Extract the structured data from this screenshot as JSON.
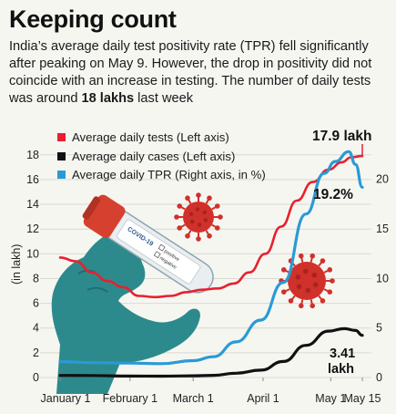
{
  "header": {
    "title": "Keeping count",
    "subtitle_text": "India’s average daily test positivity rate (TPR) fell significantly after peaking on May 9. However, the drop in positivity did not coincide with an increase in testing. The number of daily tests was around ",
    "subtitle_bold": "18 lakhs",
    "subtitle_end": " last week"
  },
  "colors": {
    "tests": "#e8202e",
    "cases": "#111111",
    "tpr": "#2a9ad6",
    "virus": "#d0312a",
    "glove": "#2d8a8c"
  },
  "illustration": {
    "tube_label": "COVID-19",
    "tube_check_1": "positive",
    "tube_check_2": "negative"
  },
  "chart_data": {
    "type": "line",
    "x_ticks": [
      "January 1",
      "February 1",
      "March 1",
      "April 1",
      "May 1",
      "May 15"
    ],
    "y_left": {
      "label": "(in lakh)",
      "ticks": [
        0,
        2,
        4,
        6,
        8,
        10,
        12,
        14,
        16,
        18
      ],
      "range": [
        0,
        18.5
      ]
    },
    "y_right": {
      "ticks": [
        0,
        5,
        10,
        15,
        20
      ],
      "range": [
        0,
        23.1
      ]
    },
    "legend": {
      "tests": "Average daily tests (Left axis)",
      "cases": "Average daily cases (Left axis)",
      "tpr": "Average daily TPR (Right axis, in %)"
    },
    "annotations": {
      "tests_peak": "17.9 lakh",
      "tpr_last": "19.2%",
      "cases_last_1": "3.41",
      "cases_last_2": "lakh"
    },
    "series": {
      "tests": {
        "axis": "left",
        "x": [
          "2021-01-01",
          "2021-01-08",
          "2021-01-15",
          "2021-01-22",
          "2021-01-29",
          "2021-02-05",
          "2021-02-12",
          "2021-02-19",
          "2021-02-26",
          "2021-03-05",
          "2021-03-12",
          "2021-03-19",
          "2021-03-26",
          "2021-04-02",
          "2021-04-09",
          "2021-04-16",
          "2021-04-23",
          "2021-04-30",
          "2021-05-06",
          "2021-05-10",
          "2021-05-15"
        ],
        "values": [
          9.7,
          9.4,
          8.5,
          7.8,
          7.3,
          6.6,
          6.5,
          6.6,
          6.9,
          7.1,
          7.2,
          7.6,
          8.5,
          10.0,
          12.2,
          14.3,
          15.8,
          16.8,
          17.4,
          17.8,
          17.9
        ]
      },
      "cases": {
        "axis": "left",
        "x": [
          "2021-01-01",
          "2021-01-15",
          "2021-02-01",
          "2021-02-15",
          "2021-03-01",
          "2021-03-10",
          "2021-03-20",
          "2021-03-31",
          "2021-04-10",
          "2021-04-20",
          "2021-04-30",
          "2021-05-07",
          "2021-05-12",
          "2021-05-15"
        ],
        "values": [
          0.17,
          0.16,
          0.12,
          0.11,
          0.14,
          0.18,
          0.35,
          0.6,
          1.3,
          2.6,
          3.75,
          3.95,
          3.8,
          3.41
        ]
      },
      "tpr": {
        "axis": "right",
        "x": [
          "2021-01-01",
          "2021-01-15",
          "2021-02-01",
          "2021-02-15",
          "2021-03-01",
          "2021-03-10",
          "2021-03-20",
          "2021-03-31",
          "2021-04-10",
          "2021-04-20",
          "2021-04-28",
          "2021-05-03",
          "2021-05-09",
          "2021-05-12",
          "2021-05-15"
        ],
        "values": [
          1.6,
          1.5,
          1.45,
          1.4,
          1.7,
          2.1,
          3.6,
          5.8,
          9.6,
          16.5,
          20.6,
          21.8,
          22.8,
          21.5,
          19.2
        ]
      }
    }
  }
}
